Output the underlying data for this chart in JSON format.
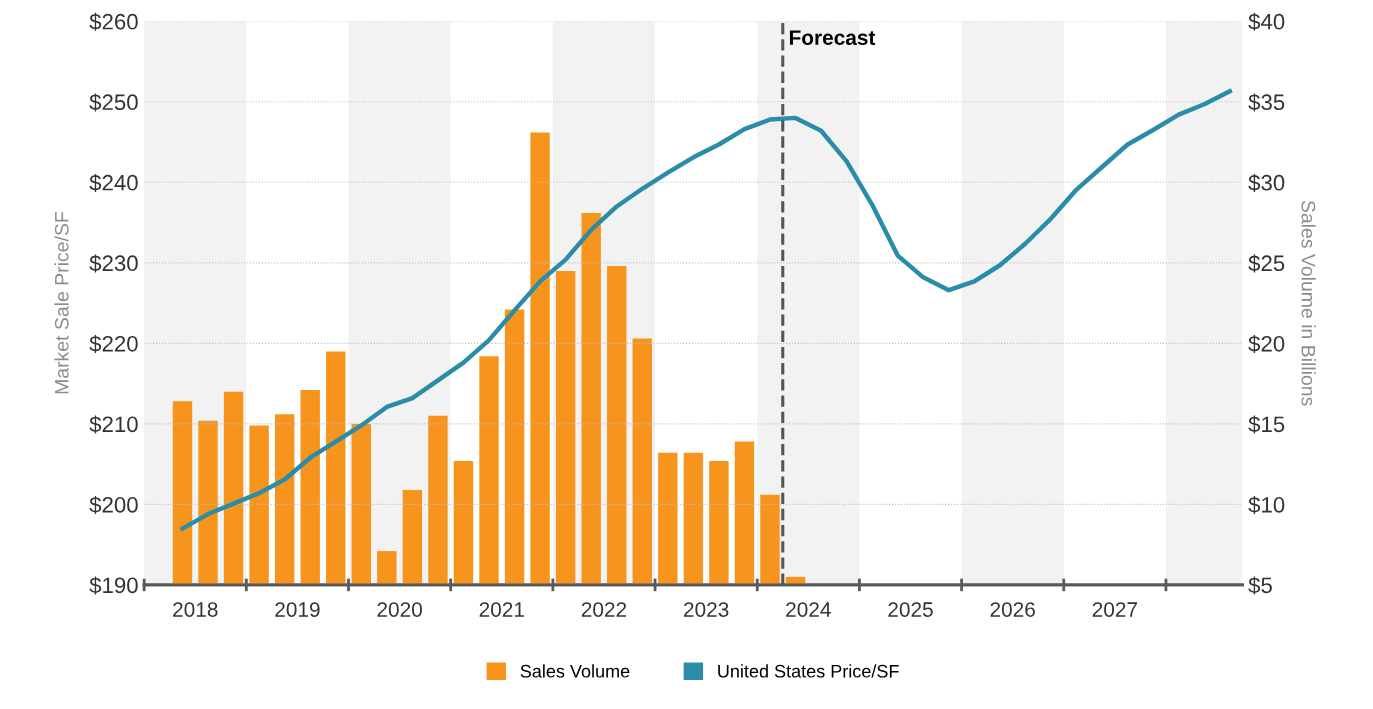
{
  "chart_data": {
    "type": "bar",
    "ylabel": "Market Sale Price/SF",
    "y2label": "Sales Volume in Billions",
    "x": [
      2018.375,
      2018.625,
      2018.875,
      2019.125,
      2019.375,
      2019.625,
      2019.875,
      2020.125,
      2020.375,
      2020.625,
      2020.875,
      2021.125,
      2021.375,
      2021.625,
      2021.875,
      2022.125,
      2022.375,
      2022.625,
      2022.875,
      2023.125,
      2023.375,
      2023.625,
      2023.875,
      2024.125,
      2024.375,
      2024.625,
      2024.875,
      2025.125,
      2025.375,
      2025.625,
      2025.875,
      2026.125,
      2026.375,
      2026.625,
      2026.875,
      2027.125,
      2027.375,
      2027.625,
      2027.875,
      2028.125,
      2028.375,
      2028.625
    ],
    "series": [
      {
        "name": "Sales Volume",
        "axis": "y2",
        "color": "#f7941d",
        "values": [
          16.4,
          15.2,
          17.0,
          14.9,
          15.6,
          17.1,
          19.5,
          15.0,
          7.1,
          10.9,
          15.5,
          12.7,
          19.2,
          22.1,
          33.1,
          24.5,
          28.1,
          24.8,
          20.3,
          13.2,
          13.2,
          12.7,
          13.9,
          10.6,
          5.5,
          null,
          null,
          null,
          null,
          null,
          null,
          null,
          null,
          null,
          null,
          null,
          null,
          null,
          null,
          null,
          null,
          null
        ]
      },
      {
        "name": "United States Price/SF",
        "type": "line",
        "color": "#2a8ca8",
        "values": [
          197.0,
          198.8,
          200.1,
          201.4,
          203.1,
          205.8,
          207.8,
          209.8,
          212.1,
          213.2,
          215.4,
          217.6,
          220.4,
          224.1,
          227.7,
          230.4,
          234.1,
          237.0,
          239.2,
          241.2,
          243.1,
          244.7,
          246.6,
          247.8,
          248.0,
          246.4,
          242.6,
          237.2,
          230.9,
          228.2,
          226.6,
          227.7,
          229.7,
          232.4,
          235.5,
          239.1,
          241.9,
          244.7,
          246.5,
          248.4,
          249.7,
          251.3
        ]
      }
    ],
    "xlim": [
      2018,
      2028.75
    ],
    "xticks": [
      {
        "value": 2018,
        "label": null
      },
      {
        "value": 2018.5,
        "label": "2018"
      },
      {
        "value": 2019,
        "label": null
      },
      {
        "value": 2019.5,
        "label": "2019"
      },
      {
        "value": 2020,
        "label": null
      },
      {
        "value": 2020.5,
        "label": "2020"
      },
      {
        "value": 2021,
        "label": null
      },
      {
        "value": 2021.5,
        "label": "2021"
      },
      {
        "value": 2022,
        "label": null
      },
      {
        "value": 2022.5,
        "label": "2022"
      },
      {
        "value": 2023,
        "label": null
      },
      {
        "value": 2023.5,
        "label": "2023"
      },
      {
        "value": 2024,
        "label": null
      },
      {
        "value": 2024.5,
        "label": "2024"
      },
      {
        "value": 2025,
        "label": null
      },
      {
        "value": 2025.5,
        "label": "2025"
      },
      {
        "value": 2026,
        "label": null
      },
      {
        "value": 2026.5,
        "label": "2026"
      },
      {
        "value": 2027,
        "label": null
      },
      {
        "value": 2027.5,
        "label": "2027"
      },
      {
        "value": 2028,
        "label": null
      }
    ],
    "ylim": [
      190,
      260
    ],
    "yticks": [
      {
        "value": 190,
        "label": "$190"
      },
      {
        "value": 200,
        "label": "$200"
      },
      {
        "value": 210,
        "label": "$210"
      },
      {
        "value": 220,
        "label": "$220"
      },
      {
        "value": 230,
        "label": "$230"
      },
      {
        "value": 240,
        "label": "$240"
      },
      {
        "value": 250,
        "label": "$250"
      },
      {
        "value": 260,
        "label": "$260"
      }
    ],
    "y2lim": [
      5,
      40
    ],
    "y2ticks": [
      {
        "value": 5,
        "label": "$5"
      },
      {
        "value": 10,
        "label": "$10"
      },
      {
        "value": 15,
        "label": "$15"
      },
      {
        "value": 20,
        "label": "$20"
      },
      {
        "value": 25,
        "label": "$25"
      },
      {
        "value": 30,
        "label": "$30"
      },
      {
        "value": 35,
        "label": "$35"
      },
      {
        "value": 40,
        "label": "$40"
      }
    ],
    "ref_lines": [
      {
        "axis": "x",
        "value": 2024.25,
        "label": "Forecast",
        "color": "#555555",
        "line_style": "dashed"
      }
    ],
    "bands": [
      {
        "axis": "x",
        "from": 2018,
        "to": 2019,
        "color": "#f2f2f2"
      },
      {
        "axis": "x",
        "from": 2020,
        "to": 2021,
        "color": "#f2f2f2"
      },
      {
        "axis": "x",
        "from": 2022,
        "to": 2023,
        "color": "#f2f2f2"
      },
      {
        "axis": "x",
        "from": 2024,
        "to": 2025,
        "color": "#f2f2f2"
      },
      {
        "axis": "x",
        "from": 2026,
        "to": 2027,
        "color": "#f2f2f2"
      },
      {
        "axis": "x",
        "from": 2028,
        "to": 2028.75,
        "color": "#f2f2f2"
      }
    ],
    "grid": "y",
    "legend": "bottom"
  }
}
